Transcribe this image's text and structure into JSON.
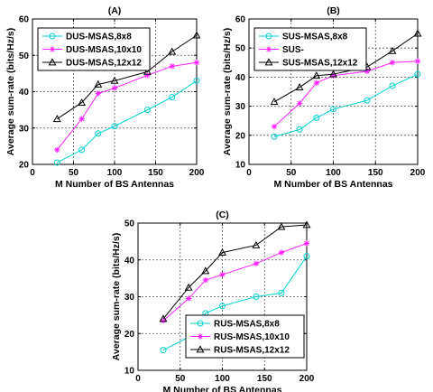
{
  "chart_data": [
    {
      "type": "line",
      "title": "(A)",
      "xlabel": "M Number of BS Antennas",
      "ylabel": "Average sum-rate (bits/Hz/s)",
      "xlim": [
        0,
        200
      ],
      "ylim": [
        20,
        60
      ],
      "xticks": [
        "0",
        "50",
        "100",
        "150",
        "200"
      ],
      "yticks": [
        "20",
        "30",
        "40",
        "50",
        "60"
      ],
      "grid": true,
      "legend": "top-left",
      "series": [
        {
          "name": "DUS-MSAS,8x8",
          "marker": "circle",
          "color": "#00d2d2",
          "x": [
            30,
            60,
            80,
            100,
            140,
            170,
            200
          ],
          "y": [
            20.5,
            24,
            28.5,
            30.5,
            35,
            38.5,
            43
          ]
        },
        {
          "name": "DUS-MSAS,10x10",
          "marker": "star",
          "color": "#ff22ff",
          "x": [
            30,
            60,
            80,
            100,
            140,
            170,
            200
          ],
          "y": [
            24,
            32.5,
            39.5,
            41,
            44.5,
            47,
            48
          ]
        },
        {
          "name": "DUS-MSAS,12x12",
          "marker": "triangle",
          "color": "#000000",
          "x": [
            30,
            60,
            80,
            100,
            140,
            170,
            200
          ],
          "y": [
            32.5,
            37,
            42,
            43,
            45.5,
            51,
            55.5
          ]
        }
      ]
    },
    {
      "type": "line",
      "title": "(B)",
      "xlabel": "M Number of BS Antennas",
      "ylabel": "Average sum-rate (bits/Hz/s)",
      "xlim": [
        0,
        200
      ],
      "ylim": [
        10,
        60
      ],
      "xticks": [
        "0",
        "50",
        "100",
        "150",
        "200"
      ],
      "yticks": [
        "10",
        "20",
        "30",
        "40",
        "50",
        "60"
      ],
      "grid": true,
      "legend": "top-left",
      "series": [
        {
          "name": "SUS-MSAS,8x8",
          "marker": "circle",
          "color": "#00d2d2",
          "x": [
            30,
            60,
            80,
            100,
            140,
            170,
            200
          ],
          "y": [
            19.5,
            22,
            26,
            29,
            32,
            37,
            41
          ]
        },
        {
          "name": "SUS-",
          "marker": "star",
          "color": "#ff22ff",
          "x": [
            30,
            60,
            80,
            100,
            140,
            170,
            200
          ],
          "y": [
            23,
            31,
            38,
            40.5,
            42,
            45,
            45.5
          ]
        },
        {
          "name": "SUS-MSAS,12x12",
          "marker": "triangle",
          "color": "#000000",
          "x": [
            30,
            60,
            80,
            100,
            140,
            170,
            200
          ],
          "y": [
            31.5,
            36.5,
            40.5,
            41,
            43.5,
            49,
            55
          ]
        }
      ]
    },
    {
      "type": "line",
      "title": "(C)",
      "xlabel": "M Number of BS Antennas",
      "ylabel": "Average sum-rate (bits/Hz/s)",
      "xlim": [
        0,
        200
      ],
      "ylim": [
        10,
        50
      ],
      "xticks": [
        "0",
        "50",
        "100",
        "150",
        "200"
      ],
      "yticks": [
        "10",
        "20",
        "30",
        "40",
        "50"
      ],
      "grid": true,
      "legend": "bottom-right",
      "series": [
        {
          "name": "RUS-MSAS,8x8",
          "marker": "circle",
          "color": "#00d2d2",
          "x": [
            30,
            60,
            80,
            100,
            140,
            170,
            200
          ],
          "y": [
            15.5,
            19,
            25.5,
            27.5,
            30,
            31,
            41
          ]
        },
        {
          "name": "RUS-MSAS,10x10",
          "marker": "star",
          "color": "#ff22ff",
          "x": [
            30,
            60,
            80,
            100,
            140,
            170,
            200
          ],
          "y": [
            23.5,
            29.5,
            34.5,
            36,
            39,
            42,
            44.5
          ]
        },
        {
          "name": "RUS-MSAS,12x12",
          "marker": "triangle",
          "color": "#000000",
          "x": [
            30,
            60,
            80,
            100,
            140,
            170,
            200
          ],
          "y": [
            24,
            32.5,
            37,
            42,
            44,
            49,
            49.5
          ]
        }
      ]
    }
  ]
}
